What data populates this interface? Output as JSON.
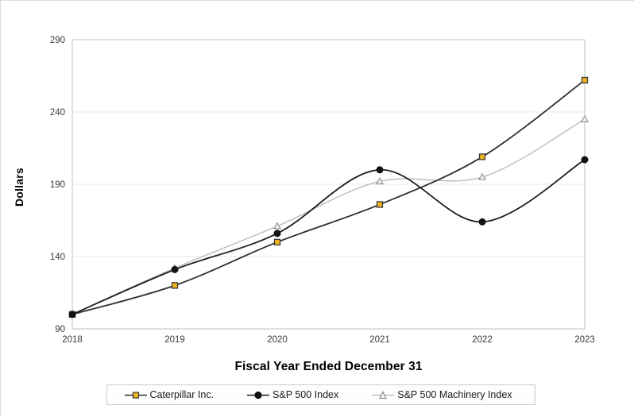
{
  "window": {
    "background": "#ffffff",
    "frame_border_color": "#dcdcdc"
  },
  "chart_data": {
    "type": "line",
    "title": "",
    "xlabel": "Fiscal Year Ended December 31",
    "ylabel": "Dollars",
    "x": [
      "2018",
      "2019",
      "2020",
      "2021",
      "2022",
      "2023"
    ],
    "ylim": [
      90,
      290
    ],
    "yticks": [
      90,
      140,
      190,
      240,
      290
    ],
    "grid": "faint horizontal gridlines at interior y ticks",
    "legend_position": "bottom-center, boxed",
    "line_style": "smoothed",
    "series": [
      {
        "name": "Caterpillar Inc.",
        "marker": "square",
        "line_color": "#2f2f2f",
        "marker_fill": "#f0b41e",
        "marker_stroke": "#3a3a3a",
        "values": [
          100,
          120,
          150,
          176,
          209,
          262
        ]
      },
      {
        "name": "S&P 500 Index",
        "marker": "circle",
        "line_color": "#1f1f1f",
        "marker_fill": "#121212",
        "marker_stroke": "#121212",
        "values": [
          100,
          131,
          156,
          200,
          164,
          207
        ]
      },
      {
        "name": "S&P 500 Machinery Index",
        "marker": "triangle",
        "line_color": "#bcbcbc",
        "marker_fill": "#f4f4f4",
        "marker_stroke": "#8e8e8e",
        "values": [
          100,
          132,
          161,
          192,
          195,
          235
        ]
      }
    ],
    "axis": {
      "box_color": "#c2c2c2",
      "grid_color": "#e9e9e9",
      "tick_label_color": "#3b3b3b"
    }
  }
}
